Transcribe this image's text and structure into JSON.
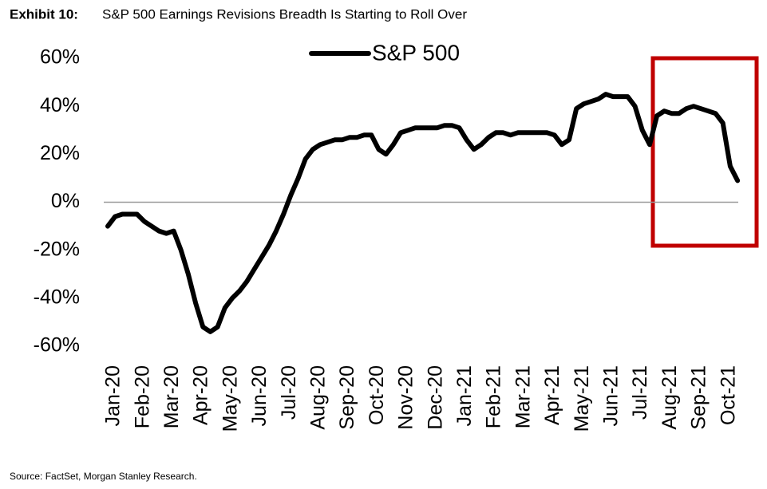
{
  "chart_data": {
    "type": "line",
    "title_prefix": "Exhibit 10:",
    "title": "S&P 500 Earnings Revisions Breadth Is Starting to Roll Over",
    "source": "Source: FactSet, Morgan Stanley Research.",
    "categories": [
      "Jan-20",
      null,
      null,
      null,
      "Feb-20",
      null,
      null,
      null,
      "Mar-20",
      null,
      null,
      null,
      "Apr-20",
      null,
      null,
      null,
      "May-20",
      null,
      null,
      null,
      "Jun-20",
      null,
      null,
      null,
      "Jul-20",
      null,
      null,
      null,
      "Aug-20",
      null,
      null,
      null,
      "Sep-20",
      null,
      null,
      null,
      "Oct-20",
      null,
      null,
      null,
      "Nov-20",
      null,
      null,
      null,
      "Dec-20",
      null,
      null,
      null,
      "Jan-21",
      null,
      null,
      null,
      "Feb-21",
      null,
      null,
      null,
      "Mar-21",
      null,
      null,
      null,
      "Apr-21",
      null,
      null,
      null,
      "May-21",
      null,
      null,
      null,
      "Jun-21",
      null,
      null,
      null,
      "Jul-21",
      null,
      null,
      null,
      "Aug-21",
      null,
      null,
      null,
      "Sep-21",
      null,
      null,
      null,
      "Oct-21",
      null,
      null
    ],
    "series": [
      {
        "name": "S&P 500",
        "color": "#000000",
        "values": [
          -10,
          -6,
          -5,
          -5,
          -5,
          -8,
          -10,
          -12,
          -13,
          -12,
          -20,
          -30,
          -42,
          -52,
          -54,
          -52,
          -44,
          -40,
          -37,
          -33,
          -28,
          -23,
          -18,
          -12,
          -5,
          3,
          10,
          18,
          22,
          24,
          25,
          26,
          26,
          27,
          27,
          28,
          28,
          22,
          20,
          24,
          29,
          30,
          31,
          31,
          31,
          31,
          32,
          32,
          31,
          26,
          22,
          24,
          27,
          29,
          29,
          28,
          29,
          29,
          29,
          29,
          29,
          28,
          24,
          26,
          39,
          41,
          42,
          43,
          45,
          44,
          44,
          44,
          40,
          30,
          24,
          36,
          38,
          37,
          37,
          39,
          40,
          39,
          38,
          37,
          33,
          15,
          9
        ]
      }
    ],
    "ylim": [
      -60,
      60
    ],
    "yticks": [
      {
        "value": -60,
        "label": "-60%"
      },
      {
        "value": -40,
        "label": "-40%"
      },
      {
        "value": -20,
        "label": "-20%"
      },
      {
        "value": 0,
        "label": "0%"
      },
      {
        "value": 20,
        "label": "20%"
      },
      {
        "value": 40,
        "label": "40%"
      },
      {
        "value": 60,
        "label": "60%"
      }
    ],
    "grid": false,
    "legend": "top"
  }
}
